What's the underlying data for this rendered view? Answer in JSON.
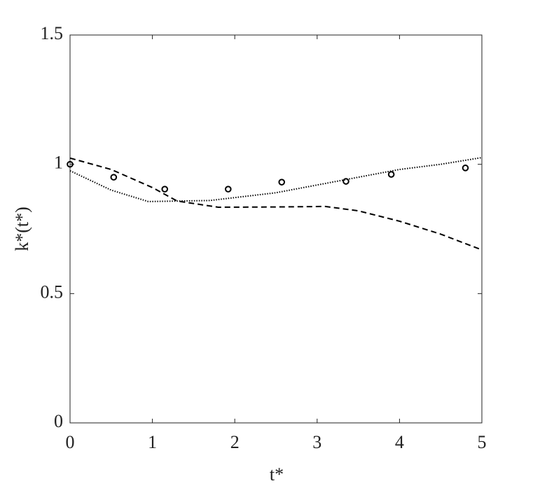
{
  "chart_data": {
    "type": "line",
    "xlabel": "t*",
    "ylabel": "k*(t*)",
    "xlim": [
      0,
      5
    ],
    "xticks": [
      0,
      1,
      2,
      3,
      4,
      5
    ],
    "ylim": [
      0,
      1.5
    ],
    "yticks": [
      0,
      0.5,
      1,
      1.5
    ],
    "grid": false,
    "series": [
      {
        "style": "markers",
        "color": "#000000",
        "x": [
          0,
          0.53,
          1.15,
          1.92,
          2.57,
          3.35,
          3.9,
          4.8
        ],
        "values": [
          1.0,
          0.95,
          0.904,
          0.904,
          0.931,
          0.934,
          0.961,
          0.986
        ]
      },
      {
        "style": "dashed",
        "color": "#000000",
        "x": [
          0,
          0.5,
          1,
          1.3,
          1.8,
          2.5,
          3.1,
          3.5,
          4,
          4.5,
          5
        ],
        "values": [
          1.024,
          0.98,
          0.91,
          0.858,
          0.834,
          0.835,
          0.837,
          0.82,
          0.78,
          0.73,
          0.669
        ]
      },
      {
        "style": "dotted",
        "color": "#000000",
        "x": [
          0,
          0.5,
          0.95,
          1.7,
          2.5,
          3,
          3.5,
          4,
          4.5,
          5
        ],
        "values": [
          0.975,
          0.9,
          0.856,
          0.86,
          0.89,
          0.92,
          0.95,
          0.98,
          1.0,
          1.026
        ]
      }
    ]
  }
}
